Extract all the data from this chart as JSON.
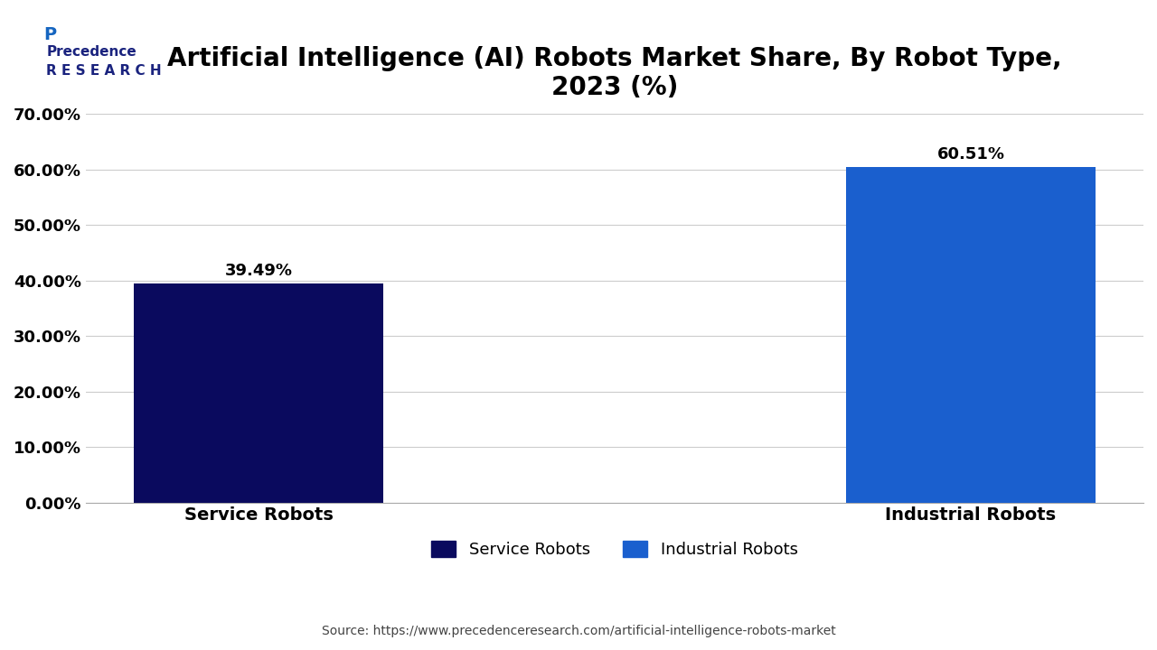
{
  "title": "Artificial Intelligence (AI) Robots Market Share, By Robot Type,\n2023 (%)",
  "categories": [
    "Service Robots",
    "Industrial Robots"
  ],
  "values": [
    39.49,
    60.51
  ],
  "bar_colors": [
    "#0a0a5e",
    "#1a5fce"
  ],
  "bar_labels": [
    "39.49%",
    "60.51%"
  ],
  "ylim": [
    0,
    70
  ],
  "yticks": [
    0,
    10,
    20,
    30,
    40,
    50,
    60,
    70
  ],
  "ytick_labels": [
    "0.00%",
    "10.00%",
    "20.00%",
    "30.00%",
    "40.00%",
    "50.00%",
    "60.00%",
    "70.00%"
  ],
  "legend_labels": [
    "Service Robots",
    "Industrial Robots"
  ],
  "legend_colors": [
    "#0a0a5e",
    "#1a5fce"
  ],
  "source_text": "Source: https://www.precedenceresearch.com/artificial-intelligence-robots-market",
  "background_color": "#ffffff",
  "title_fontsize": 20,
  "tick_fontsize": 13,
  "label_fontsize": 14,
  "bar_label_fontsize": 13,
  "legend_fontsize": 13,
  "source_fontsize": 10,
  "bar_width": 0.35
}
